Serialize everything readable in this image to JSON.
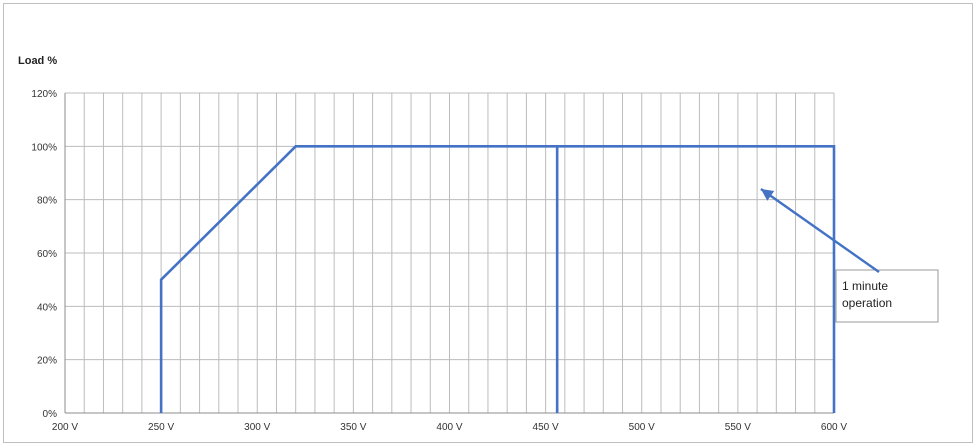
{
  "chart_data": {
    "type": "line",
    "title": "",
    "xlabel": "",
    "ylabel": "Load %",
    "x_ticks": [
      "200 V",
      "250 V",
      "300 V",
      "350 V",
      "400 V",
      "450 V",
      "500 V",
      "550 V",
      "600 V"
    ],
    "y_ticks": [
      "0%",
      "20%",
      "40%",
      "60%",
      "80%",
      "100%",
      "120%"
    ],
    "xlim": [
      200,
      600
    ],
    "ylim": [
      0,
      120
    ],
    "grid": true,
    "series": [
      {
        "color": "#4472c4",
        "points": [
          [
            250,
            0
          ],
          [
            250,
            50
          ],
          [
            320,
            100
          ],
          [
            600,
            100
          ],
          [
            600,
            0
          ]
        ]
      },
      {
        "color": "#4472c4",
        "points": [
          [
            456,
            0
          ],
          [
            456,
            100
          ]
        ]
      }
    ],
    "annotations": [
      {
        "text": "1 minute operation",
        "lines": [
          "1 minute",
          "operation"
        ],
        "arrow_to": [
          562,
          84
        ],
        "arrow_color": "#4472c4"
      }
    ]
  }
}
